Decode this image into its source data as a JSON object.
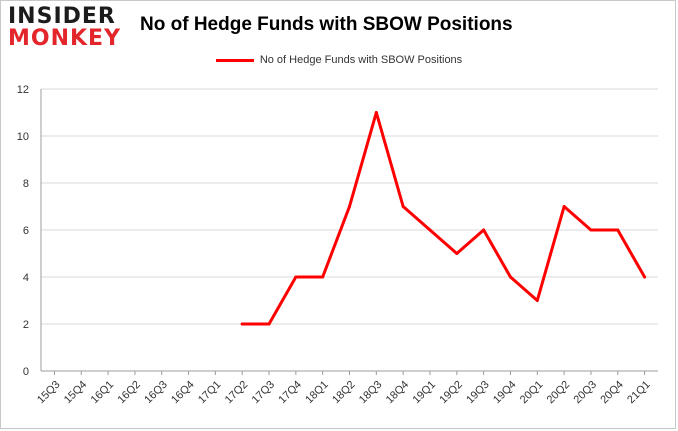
{
  "logo": {
    "line1": "INSIDER",
    "line2": "MONKEY"
  },
  "colors": {
    "series": "#ff0000",
    "logo_red": "#e3262b"
  },
  "chart_data": {
    "type": "line",
    "title": "No of Hedge Funds with SBOW Positions",
    "xlabel": "",
    "ylabel": "",
    "categories": [
      "15Q3",
      "15Q4",
      "16Q1",
      "16Q2",
      "16Q3",
      "16Q4",
      "17Q1",
      "17Q2",
      "17Q3",
      "17Q4",
      "18Q1",
      "18Q2",
      "18Q3",
      "18Q4",
      "19Q1",
      "19Q2",
      "19Q3",
      "19Q4",
      "20Q1",
      "20Q2",
      "20Q3",
      "20Q4",
      "21Q1"
    ],
    "series": [
      {
        "name": "No of Hedge Funds with SBOW Positions",
        "values": [
          null,
          null,
          null,
          null,
          null,
          null,
          null,
          2,
          2,
          4,
          4,
          7,
          11,
          7,
          6,
          5,
          6,
          4,
          3,
          7,
          6,
          6,
          4
        ]
      }
    ],
    "ylim": [
      0,
      12
    ],
    "yticks": [
      0,
      2,
      4,
      6,
      8,
      10,
      12
    ],
    "grid": true,
    "legend": "top-center"
  }
}
